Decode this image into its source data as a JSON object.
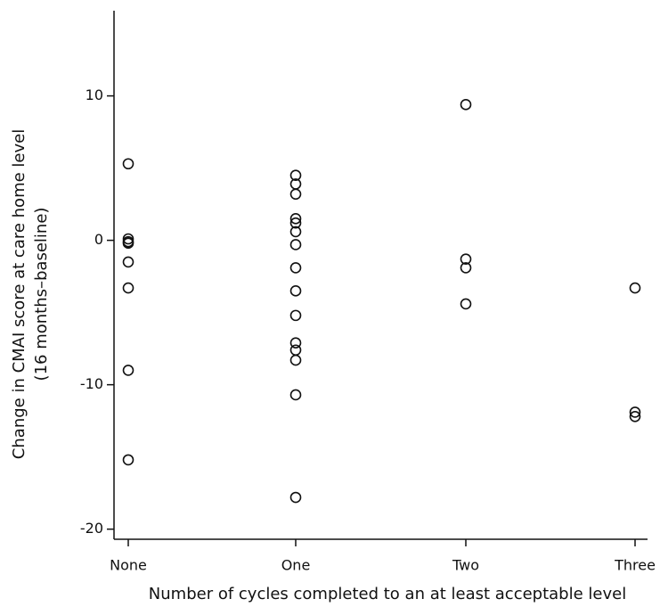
{
  "chart_data": {
    "type": "scatter",
    "x_label": "Number of cycles completed to an at least acceptable level",
    "y_label": [
      "Change in CMAI score at care home level",
      "(16 months–baseline)"
    ],
    "categories": [
      "None",
      "One",
      "Two",
      "Three"
    ],
    "groups": [
      [
        5.3,
        0.1,
        -0.1,
        -0.2,
        -1.5,
        -3.3,
        -9.0,
        -15.2
      ],
      [
        4.5,
        3.9,
        3.2,
        1.5,
        1.2,
        0.6,
        -0.3,
        -1.9,
        -3.5,
        -5.2,
        -7.1,
        -7.6,
        -8.3,
        -10.7,
        -17.8
      ],
      [
        9.4,
        -1.3,
        -1.9,
        -4.4
      ],
      [
        -3.3,
        -11.9,
        -12.2
      ]
    ],
    "color": "#111111",
    "ylim": [
      -20.7,
      15.9
    ],
    "yticks": [
      -20,
      -10,
      0,
      10
    ],
    "grid": false
  }
}
